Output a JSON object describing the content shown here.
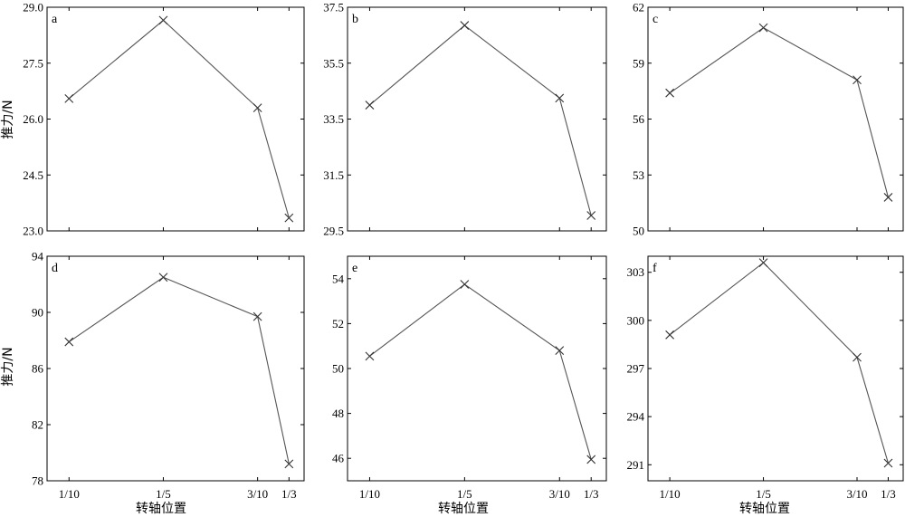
{
  "figure": {
    "ylabel": "推力/N",
    "xlabel": "转轴位置"
  },
  "chart_data": [
    {
      "type": "line",
      "panel": "a",
      "x": [
        "1/10",
        "1/5",
        "3/10",
        "1/3"
      ],
      "x_values": [
        0.1,
        0.2,
        0.3,
        0.3333
      ],
      "values": [
        26.55,
        28.65,
        26.3,
        23.35
      ],
      "ylim": [
        23.0,
        29.0
      ],
      "yticks": [
        "23.0",
        "24.5",
        "26.0",
        "27.5",
        "29.0"
      ],
      "ytick_values": [
        23.0,
        24.5,
        26.0,
        27.5,
        29.0
      ],
      "marker": "x"
    },
    {
      "type": "line",
      "panel": "b",
      "x": [
        "1/10",
        "1/5",
        "3/10",
        "1/3"
      ],
      "x_values": [
        0.1,
        0.2,
        0.3,
        0.3333
      ],
      "values": [
        34.0,
        36.85,
        34.25,
        30.05
      ],
      "ylim": [
        29.5,
        37.5
      ],
      "yticks": [
        "29.5",
        "31.5",
        "33.5",
        "35.5",
        "37.5"
      ],
      "ytick_values": [
        29.5,
        31.5,
        33.5,
        35.5,
        37.5
      ],
      "marker": "x"
    },
    {
      "type": "line",
      "panel": "c",
      "x": [
        "1/10",
        "1/5",
        "3/10",
        "1/3"
      ],
      "x_values": [
        0.1,
        0.2,
        0.3,
        0.3333
      ],
      "values": [
        57.4,
        60.9,
        58.1,
        51.8
      ],
      "ylim": [
        50,
        62
      ],
      "yticks": [
        "50",
        "53",
        "56",
        "59",
        "62"
      ],
      "ytick_values": [
        50,
        53,
        56,
        59,
        62
      ],
      "marker": "x"
    },
    {
      "type": "line",
      "panel": "d",
      "x": [
        "1/10",
        "1/5",
        "3/10",
        "1/3"
      ],
      "x_values": [
        0.1,
        0.2,
        0.3,
        0.3333
      ],
      "values": [
        87.9,
        92.5,
        89.7,
        79.2
      ],
      "ylim": [
        78,
        94
      ],
      "yticks": [
        "78",
        "82",
        "86",
        "90",
        "94"
      ],
      "ytick_values": [
        78,
        82,
        86,
        90,
        94
      ],
      "marker": "x"
    },
    {
      "type": "line",
      "panel": "e",
      "x": [
        "1/10",
        "1/5",
        "3/10",
        "1/3"
      ],
      "x_values": [
        0.1,
        0.2,
        0.3,
        0.3333
      ],
      "values": [
        50.55,
        53.75,
        50.8,
        45.95
      ],
      "ylim": [
        45,
        55
      ],
      "yticks": [
        "46",
        "48",
        "50",
        "52",
        "54"
      ],
      "ytick_values": [
        46,
        48,
        50,
        52,
        54
      ],
      "marker": "x"
    },
    {
      "type": "line",
      "panel": "f",
      "x": [
        "1/10",
        "1/5",
        "3/10",
        "1/3"
      ],
      "x_values": [
        0.1,
        0.2,
        0.3,
        0.3333
      ],
      "values": [
        299.1,
        303.6,
        297.7,
        291.1
      ],
      "ylim": [
        290.0,
        304.0
      ],
      "yticks": [
        "291",
        "294",
        "297",
        "300",
        "303"
      ],
      "ytick_values": [
        291,
        294,
        297,
        300,
        303
      ],
      "marker": "x"
    }
  ]
}
